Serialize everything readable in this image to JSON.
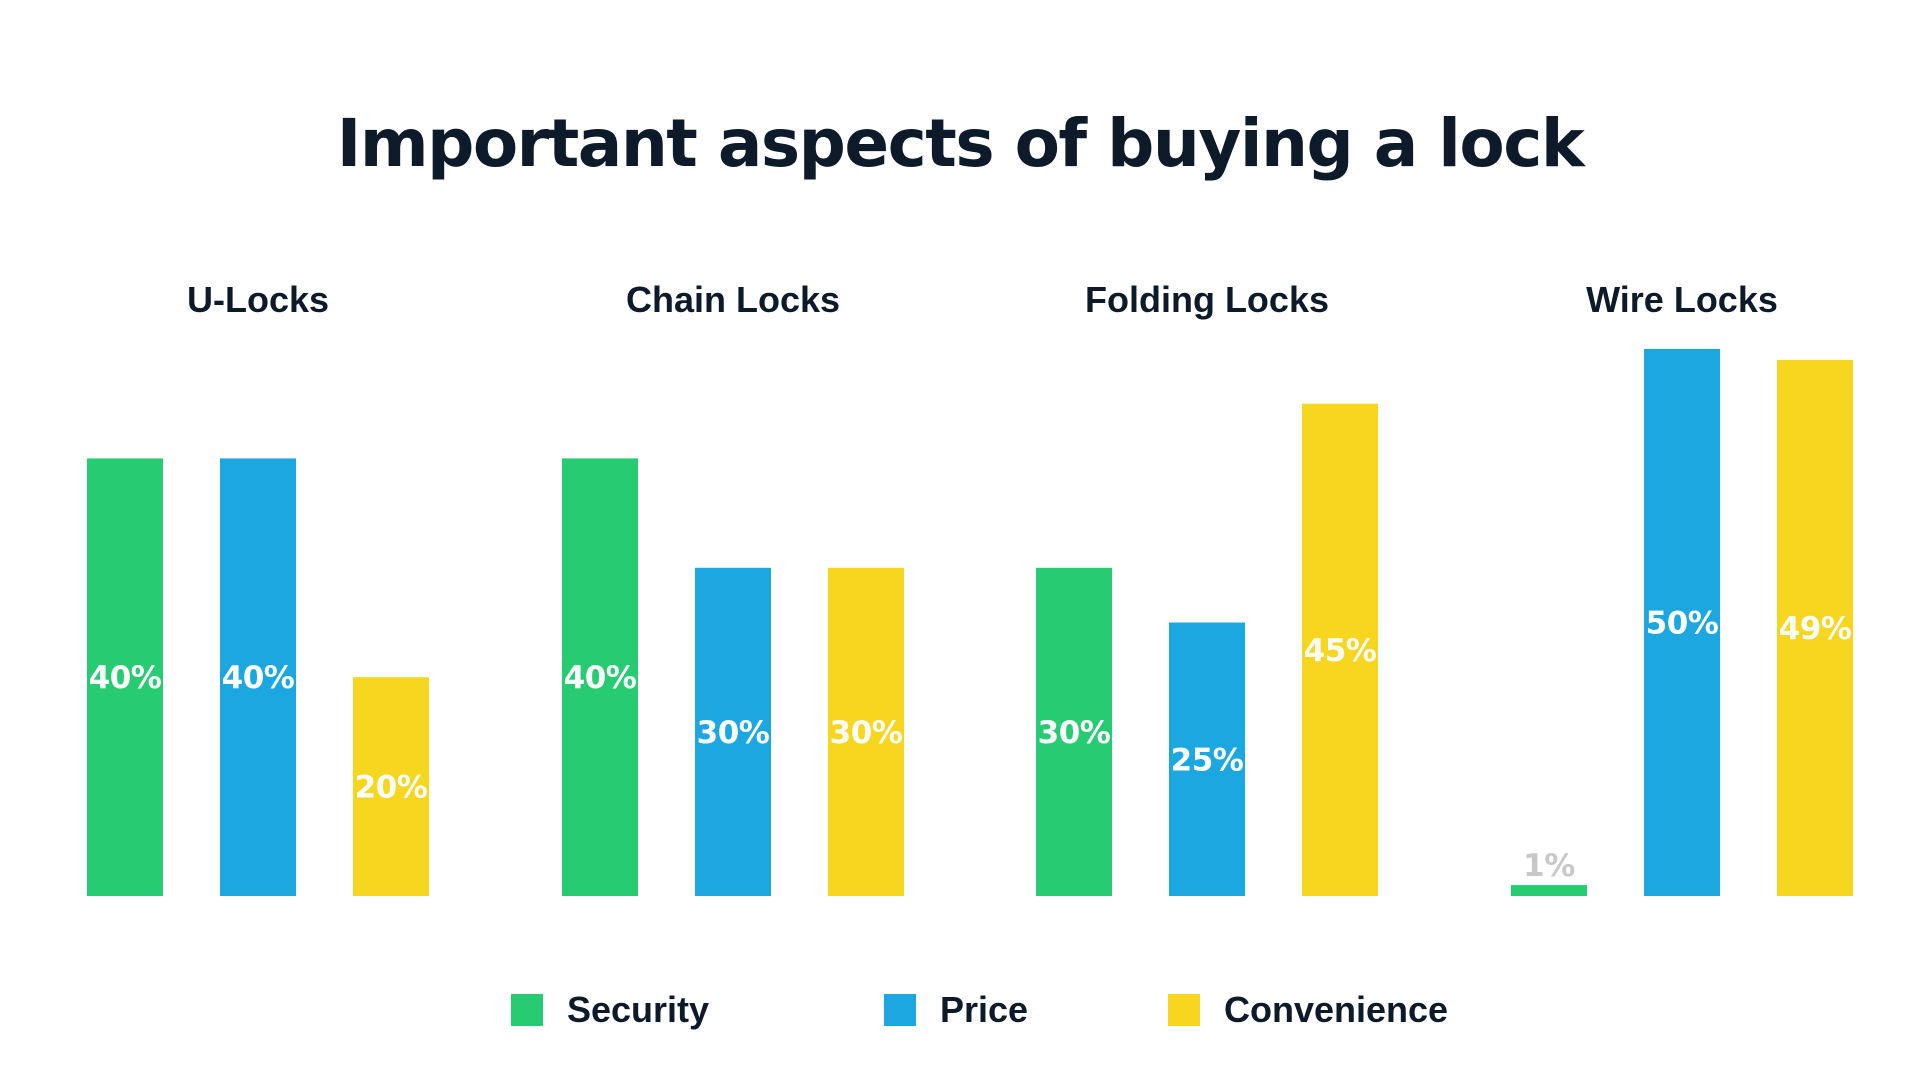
{
  "chart_data": {
    "type": "bar",
    "title": "Important aspects of buying a lock",
    "categories": [
      "U-Locks",
      "Chain Locks",
      "Folding Locks",
      "Wire Locks"
    ],
    "series": [
      {
        "name": "Security",
        "color": "#27cc72",
        "values": [
          40,
          40,
          30,
          1
        ],
        "labels": [
          "40%",
          "40%",
          "30%",
          "1%"
        ]
      },
      {
        "name": "Price",
        "color": "#1ca7e1",
        "values": [
          40,
          30,
          25,
          50
        ],
        "labels": [
          "40%",
          "30%",
          "25%",
          "50%"
        ]
      },
      {
        "name": "Convenience",
        "color": "#f6d61f",
        "values": [
          20,
          30,
          45,
          49
        ],
        "labels": [
          "20%",
          "30%",
          "45%",
          "49%"
        ]
      }
    ],
    "ylim": [
      0,
      50
    ],
    "grid": false,
    "legend": "bottom-center",
    "label_color": "#ffffff",
    "small_label_color": "#c8c8c8"
  }
}
